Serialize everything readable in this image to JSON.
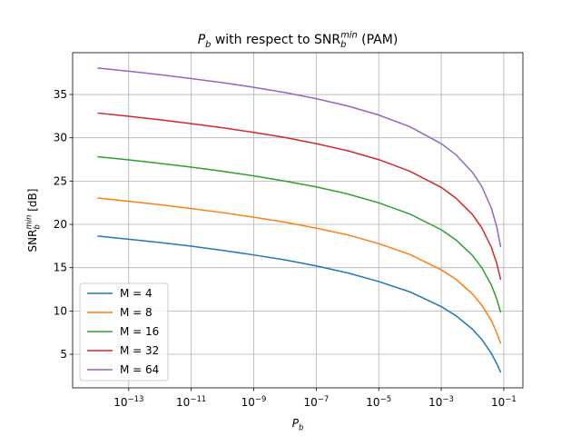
{
  "chart_data": {
    "type": "line",
    "title": [
      {
        "text": "P",
        "style": "italic"
      },
      {
        "text": "b",
        "style": "sub-italic"
      },
      {
        "text": " with respect to SNR",
        "style": "normal"
      },
      {
        "text": "b",
        "style": "sub-italic"
      },
      {
        "text": "min",
        "style": "sup-italic"
      },
      {
        "text": " (PAM)",
        "style": "normal"
      }
    ],
    "xlabel": [
      {
        "text": "P",
        "style": "italic"
      },
      {
        "text": "b",
        "style": "sub-italic"
      }
    ],
    "ylabel": [
      {
        "text": "SNR",
        "style": "normal"
      },
      {
        "text": "b",
        "style": "sub-italic"
      },
      {
        "text": "min",
        "style": "sup-italic"
      },
      {
        "text": " [dB]",
        "style": "normal"
      }
    ],
    "xscale": "log",
    "x": [
      1e-14,
      1e-13,
      1e-12,
      1e-11,
      1e-10,
      1e-09,
      1e-08,
      1e-07,
      1e-06,
      1e-05,
      0.0001,
      0.001,
      0.003,
      0.01,
      0.02,
      0.04,
      0.06,
      0.08
    ],
    "series": [
      {
        "name": "M = 4",
        "color": "#1f77b4",
        "values": [
          18.65,
          18.29,
          17.91,
          17.48,
          17.0,
          16.47,
          15.9,
          15.2,
          14.4,
          13.4,
          12.2,
          10.5,
          9.43,
          7.9,
          6.7,
          5.1,
          3.9,
          2.9
        ]
      },
      {
        "name": "M = 8",
        "color": "#ff7f0e",
        "values": [
          23.04,
          22.67,
          22.27,
          21.83,
          21.36,
          20.83,
          20.25,
          19.57,
          18.79,
          17.78,
          16.52,
          14.75,
          13.64,
          11.96,
          10.64,
          8.9,
          7.48,
          6.22
        ]
      },
      {
        "name": "M = 16",
        "color": "#2ca02c",
        "values": [
          27.82,
          27.45,
          27.05,
          26.61,
          26.14,
          25.6,
          25.0,
          24.33,
          23.52,
          22.49,
          21.19,
          19.39,
          18.18,
          16.41,
          14.97,
          13.0,
          11.37,
          9.81
        ]
      },
      {
        "name": "M = 32",
        "color": "#d62728",
        "values": [
          32.86,
          32.49,
          32.08,
          31.64,
          31.16,
          30.63,
          30.03,
          29.33,
          28.51,
          27.48,
          26.13,
          24.27,
          23.01,
          21.13,
          19.58,
          17.37,
          15.46,
          13.6
        ]
      },
      {
        "name": "M = 64",
        "color": "#9467bd",
        "values": [
          38.06,
          37.69,
          37.29,
          36.84,
          36.37,
          35.83,
          35.23,
          34.52,
          33.68,
          32.63,
          31.27,
          29.32,
          28.02,
          26.0,
          24.36,
          21.89,
          19.69,
          17.37
        ]
      }
    ],
    "xlim": [
      1.6e-15,
      0.41
    ],
    "xticks": [
      {
        "value": 1e-13,
        "label": "10−13"
      },
      {
        "value": 1e-11,
        "label": "10−11"
      },
      {
        "value": 1e-09,
        "label": "10−9"
      },
      {
        "value": 1e-07,
        "label": "10−7"
      },
      {
        "value": 1e-05,
        "label": "10−5"
      },
      {
        "value": 0.001,
        "label": "10−3"
      },
      {
        "value": 0.1,
        "label": "10−1"
      }
    ],
    "ylim": [
      1.12,
      39.83
    ],
    "yticks": [
      5,
      10,
      15,
      20,
      25,
      30,
      35
    ],
    "grid": true,
    "legend": "lower left"
  }
}
